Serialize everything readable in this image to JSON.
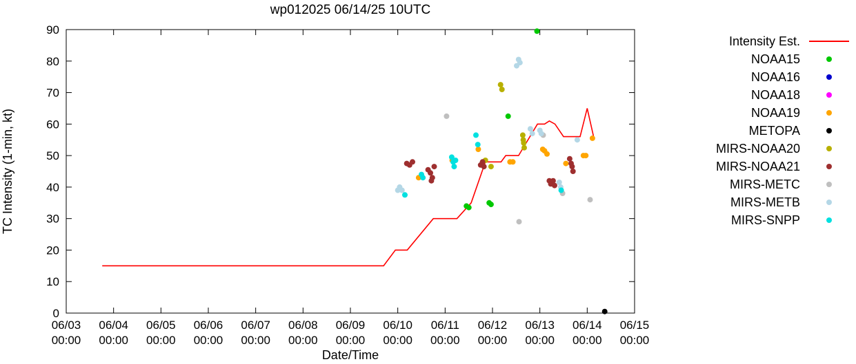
{
  "chart_data": {
    "type": "scatter",
    "title": "wp012025 06/14/25 10UTC",
    "xlabel": "Date/Time",
    "ylabel": "TC Intensity (1-min, kt)",
    "ylim": [
      0,
      90
    ],
    "ytick_step": 10,
    "x_unit": "days since 06/03 00:00 UTC",
    "x_range_days": [
      0,
      12
    ],
    "grid": false,
    "legend_position": "right",
    "x_ticks": [
      {
        "date": "06/03",
        "time": "00:00"
      },
      {
        "date": "06/04",
        "time": "00:00"
      },
      {
        "date": "06/05",
        "time": "00:00"
      },
      {
        "date": "06/06",
        "time": "00:00"
      },
      {
        "date": "06/07",
        "time": "00:00"
      },
      {
        "date": "06/08",
        "time": "00:00"
      },
      {
        "date": "06/09",
        "time": "00:00"
      },
      {
        "date": "06/10",
        "time": "00:00"
      },
      {
        "date": "06/11",
        "time": "00:00"
      },
      {
        "date": "06/12",
        "time": "00:00"
      },
      {
        "date": "06/13",
        "time": "00:00"
      },
      {
        "date": "06/14",
        "time": "00:00"
      },
      {
        "date": "06/15",
        "time": "00:00"
      }
    ],
    "line_series": {
      "name": "Intensity Est.",
      "color": "#ff0000",
      "points": [
        [
          0.76,
          15
        ],
        [
          6.7,
          15
        ],
        [
          6.95,
          20
        ],
        [
          7.2,
          20
        ],
        [
          7.75,
          30
        ],
        [
          8.25,
          30
        ],
        [
          8.55,
          35
        ],
        [
          8.85,
          48
        ],
        [
          9.18,
          48
        ],
        [
          9.28,
          50
        ],
        [
          9.55,
          50
        ],
        [
          9.75,
          55
        ],
        [
          9.95,
          60
        ],
        [
          10.1,
          60
        ],
        [
          10.2,
          61
        ],
        [
          10.32,
          60
        ],
        [
          10.5,
          56
        ],
        [
          10.85,
          56
        ],
        [
          11.0,
          65
        ],
        [
          11.15,
          55
        ]
      ]
    },
    "scatter_series": [
      {
        "name": "NOAA15",
        "color": "#00c800",
        "points": [
          [
            8.45,
            34
          ],
          [
            8.5,
            33.5
          ],
          [
            8.93,
            35
          ],
          [
            8.97,
            34.5
          ],
          [
            9.33,
            62.5
          ],
          [
            9.94,
            89.5
          ]
        ]
      },
      {
        "name": "NOAA16",
        "color": "#0000cd",
        "points": []
      },
      {
        "name": "NOAA18",
        "color": "#ff00ff",
        "points": []
      },
      {
        "name": "NOAA19",
        "color": "#ffa500",
        "points": [
          [
            7.44,
            43
          ],
          [
            8.15,
            48.5
          ],
          [
            8.7,
            52
          ],
          [
            9.37,
            48
          ],
          [
            9.43,
            48
          ],
          [
            10.06,
            52
          ],
          [
            10.1,
            51.5
          ],
          [
            10.15,
            50.5
          ],
          [
            10.55,
            47.5
          ],
          [
            10.92,
            50
          ],
          [
            10.97,
            50
          ],
          [
            11.11,
            55.5
          ]
        ]
      },
      {
        "name": "METOPA",
        "color": "#000000",
        "points": [
          [
            11.37,
            0.5
          ]
        ]
      },
      {
        "name": "MIRS-NOAA20",
        "color": "#b8b000",
        "points": [
          [
            8.85,
            48.5
          ],
          [
            8.97,
            46.5
          ],
          [
            9.17,
            72.5
          ],
          [
            9.2,
            71
          ],
          [
            9.64,
            56.5
          ],
          [
            9.65,
            55
          ],
          [
            9.66,
            54
          ],
          [
            9.67,
            52.5
          ]
        ]
      },
      {
        "name": "MIRS-NOAA21",
        "color": "#9e2f2f",
        "points": [
          [
            7.19,
            47.5
          ],
          [
            7.25,
            47
          ],
          [
            7.31,
            48
          ],
          [
            7.64,
            45.5
          ],
          [
            7.69,
            44.5
          ],
          [
            7.71,
            42
          ],
          [
            7.73,
            43
          ],
          [
            7.77,
            46.5
          ],
          [
            8.75,
            47
          ],
          [
            8.79,
            48
          ],
          [
            8.82,
            46.5
          ],
          [
            10.2,
            42
          ],
          [
            10.23,
            41
          ],
          [
            10.28,
            42
          ],
          [
            10.31,
            40.5
          ],
          [
            10.63,
            49
          ],
          [
            10.66,
            47.5
          ],
          [
            10.68,
            46.5
          ],
          [
            10.7,
            45
          ]
        ]
      },
      {
        "name": "MIRS-METC",
        "color": "#bfbfbf",
        "points": [
          [
            8.03,
            62.5
          ],
          [
            9.56,
            29
          ],
          [
            10.07,
            56.5
          ],
          [
            10.48,
            38
          ],
          [
            11.06,
            36
          ]
        ]
      },
      {
        "name": "MIRS-METB",
        "color": "#b4d7e6",
        "points": [
          [
            7.0,
            39
          ],
          [
            7.04,
            40
          ],
          [
            7.09,
            39
          ],
          [
            9.51,
            78.5
          ],
          [
            9.55,
            80.5
          ],
          [
            9.58,
            79.5
          ],
          [
            9.8,
            58.5
          ],
          [
            9.84,
            57
          ],
          [
            10.0,
            58
          ],
          [
            10.03,
            57
          ],
          [
            10.41,
            41.5
          ],
          [
            10.44,
            40
          ],
          [
            10.79,
            55
          ]
        ]
      },
      {
        "name": "MIRS-SNPP",
        "color": "#00e0e0",
        "points": [
          [
            7.15,
            37.5
          ],
          [
            7.5,
            44
          ],
          [
            7.53,
            43
          ],
          [
            8.14,
            49.5
          ],
          [
            8.17,
            48
          ],
          [
            8.19,
            46.5
          ],
          [
            8.22,
            48.5
          ],
          [
            8.65,
            56.5
          ],
          [
            8.69,
            53.5
          ],
          [
            10.45,
            39
          ]
        ]
      }
    ]
  }
}
